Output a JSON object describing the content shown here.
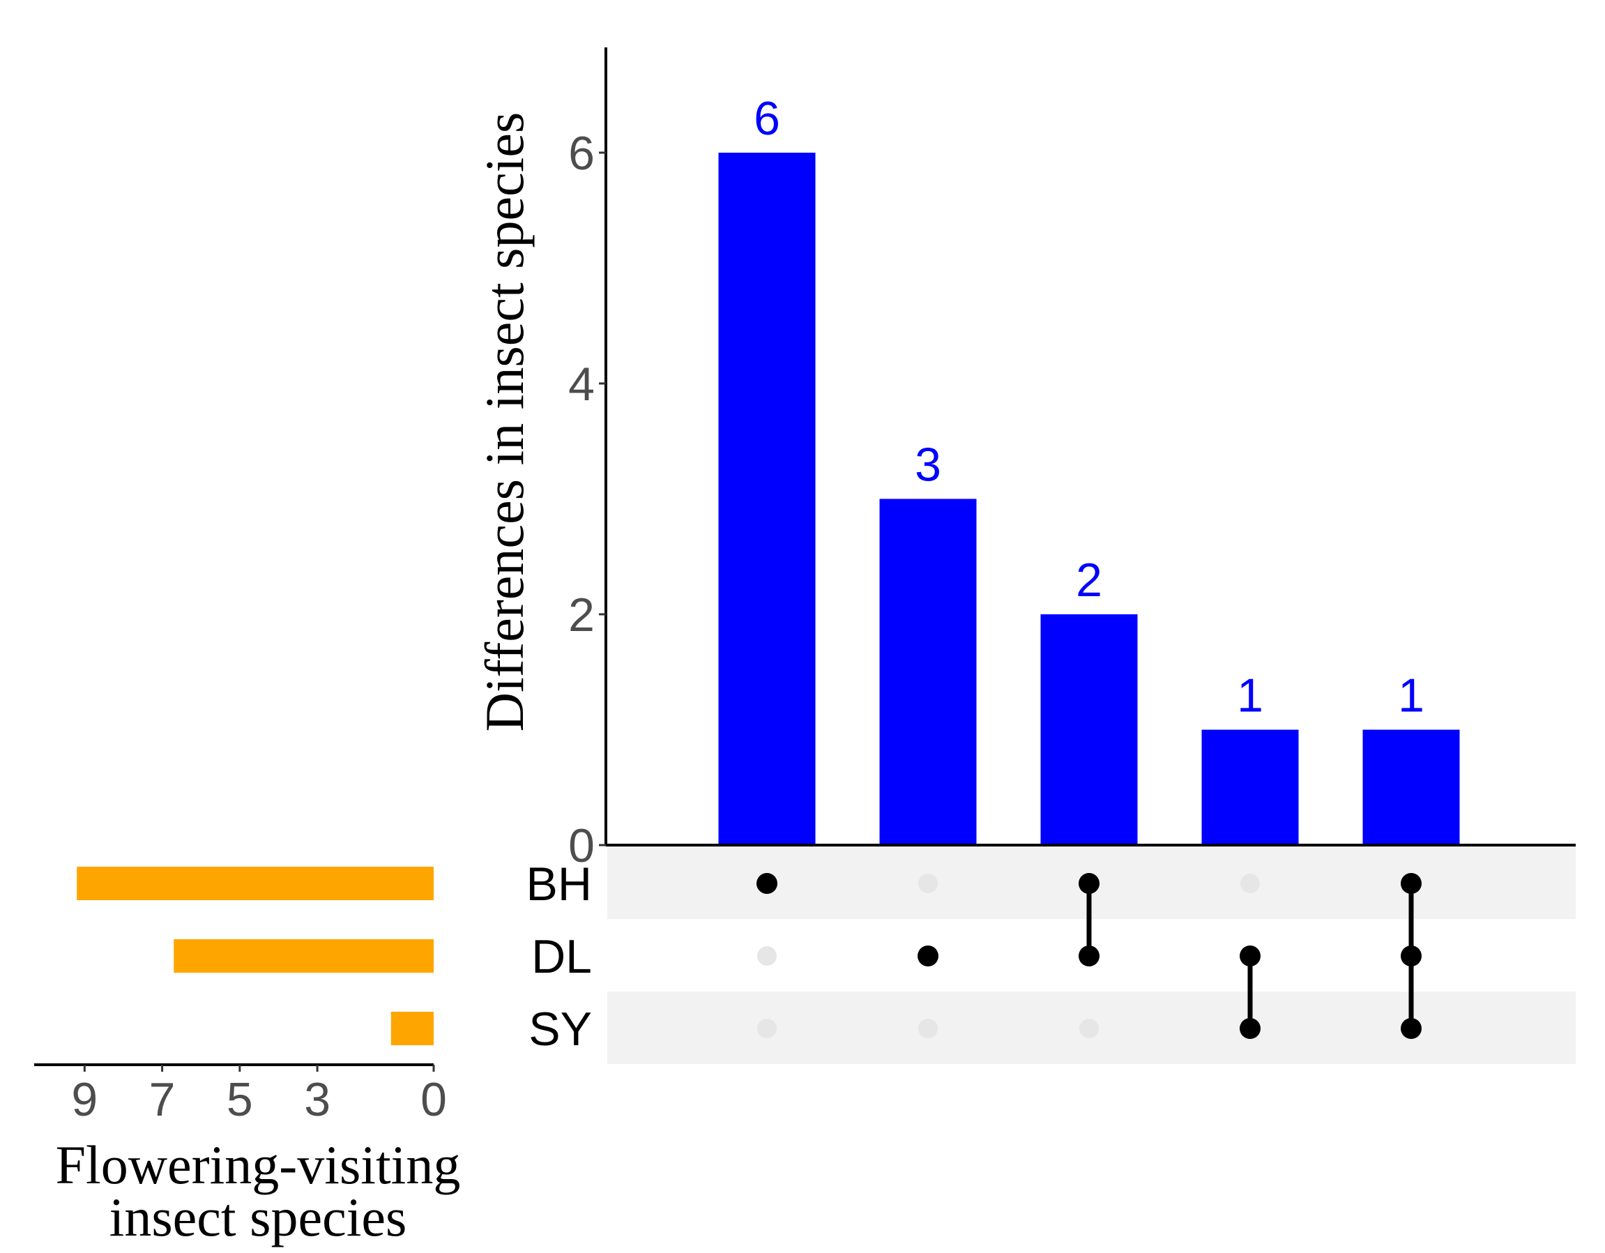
{
  "chart_data": {
    "type": "upset",
    "main_bars": {
      "ylabel": "Differences in insect species",
      "ylim": [
        0,
        6.9
      ],
      "yticks": [
        0,
        2,
        4,
        6
      ],
      "values": [
        6,
        3,
        2,
        1,
        1
      ],
      "value_labels": [
        "6",
        "3",
        "2",
        "1",
        "1"
      ],
      "color": "#0000ff",
      "label_color": "#0000ff"
    },
    "sets": {
      "names": [
        "BH",
        "DL",
        "SY"
      ],
      "sizes": [
        9.2,
        6.7,
        1.1
      ],
      "color": "#ffa500",
      "xlabel_lines": [
        "Flowering-visiting",
        "insect species"
      ],
      "xticks": [
        9,
        7,
        5,
        3,
        0
      ],
      "xlim": [
        0,
        10.3
      ]
    },
    "intersections": [
      {
        "sets": [
          "BH"
        ]
      },
      {
        "sets": [
          "DL"
        ]
      },
      {
        "sets": [
          "BH",
          "DL"
        ]
      },
      {
        "sets": [
          "DL",
          "SY"
        ]
      },
      {
        "sets": [
          "BH",
          "DL",
          "SY"
        ]
      }
    ],
    "matrix": {
      "active_color": "#000000",
      "inactive_color": "#e6e6e6",
      "stripe_color": "#f2f2f2"
    }
  }
}
